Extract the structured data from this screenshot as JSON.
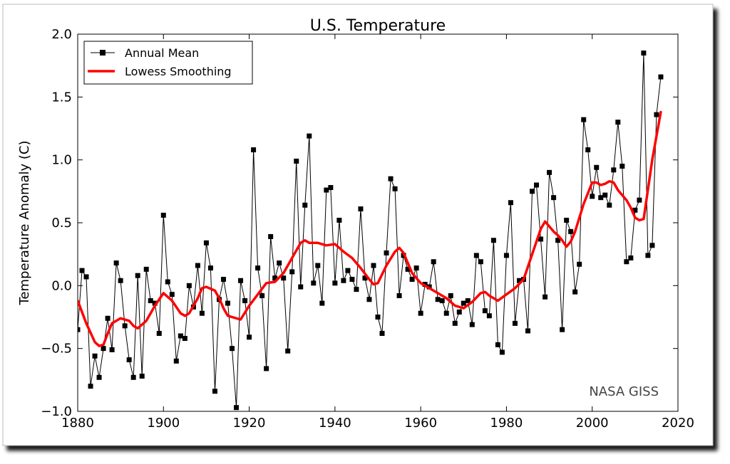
{
  "chart_data": {
    "type": "line",
    "title": "U.S. Temperature",
    "xlabel": "",
    "ylabel": "Temperature Anomaly (C)",
    "xlim": [
      1880,
      2020
    ],
    "ylim": [
      -1.0,
      2.0
    ],
    "x_ticks": [
      1880,
      1900,
      1920,
      1940,
      1960,
      1980,
      2000,
      2020
    ],
    "y_ticks": [
      -1.0,
      -0.5,
      0.0,
      0.5,
      1.0,
      1.5,
      2.0
    ],
    "x_tick_labels": [
      "1880",
      "1900",
      "1920",
      "1940",
      "1960",
      "1980",
      "2000",
      "2020"
    ],
    "y_tick_labels": [
      "−1.0",
      "−0.5",
      "0.0",
      "0.5",
      "1.0",
      "1.5",
      "2.0"
    ],
    "grid": false,
    "legend_position": "top-left",
    "annotation": "NASA GISS",
    "series": [
      {
        "name": "Annual Mean",
        "color": "#000000",
        "marker": "square",
        "x": [
          1880,
          1881,
          1882,
          1883,
          1884,
          1885,
          1886,
          1887,
          1888,
          1889,
          1890,
          1891,
          1892,
          1893,
          1894,
          1895,
          1896,
          1897,
          1898,
          1899,
          1900,
          1901,
          1902,
          1903,
          1904,
          1905,
          1906,
          1907,
          1908,
          1909,
          1910,
          1911,
          1912,
          1913,
          1914,
          1915,
          1916,
          1917,
          1918,
          1919,
          1920,
          1921,
          1922,
          1923,
          1924,
          1925,
          1926,
          1927,
          1928,
          1929,
          1930,
          1931,
          1932,
          1933,
          1934,
          1935,
          1936,
          1937,
          1938,
          1939,
          1940,
          1941,
          1942,
          1943,
          1944,
          1945,
          1946,
          1947,
          1948,
          1949,
          1950,
          1951,
          1952,
          1953,
          1954,
          1955,
          1956,
          1957,
          1958,
          1959,
          1960,
          1961,
          1962,
          1963,
          1964,
          1965,
          1966,
          1967,
          1968,
          1969,
          1970,
          1971,
          1972,
          1973,
          1974,
          1975,
          1976,
          1977,
          1978,
          1979,
          1980,
          1981,
          1982,
          1983,
          1984,
          1985,
          1986,
          1987,
          1988,
          1989,
          1990,
          1991,
          1992,
          1993,
          1994,
          1995,
          1996,
          1997,
          1998,
          1999,
          2000,
          2001,
          2002,
          2003,
          2004,
          2005,
          2006,
          2007,
          2008,
          2009,
          2010,
          2011,
          2012,
          2013,
          2014,
          2015,
          2016
        ],
        "y": [
          -0.35,
          0.12,
          0.07,
          -0.8,
          -0.56,
          -0.73,
          -0.5,
          -0.26,
          -0.51,
          0.18,
          0.04,
          -0.32,
          -0.59,
          -0.73,
          0.08,
          -0.72,
          0.13,
          -0.12,
          -0.14,
          -0.38,
          0.56,
          0.03,
          -0.07,
          -0.6,
          -0.4,
          -0.42,
          0.0,
          -0.17,
          0.16,
          -0.22,
          0.34,
          0.14,
          -0.84,
          -0.11,
          0.05,
          -0.14,
          -0.5,
          -0.97,
          0.04,
          -0.12,
          -0.41,
          1.08,
          0.14,
          -0.08,
          -0.66,
          0.39,
          0.06,
          0.18,
          0.06,
          -0.52,
          0.11,
          0.99,
          -0.01,
          0.64,
          1.19,
          0.02,
          0.16,
          -0.14,
          0.76,
          0.78,
          0.02,
          0.52,
          0.04,
          0.12,
          0.05,
          -0.03,
          0.61,
          0.06,
          -0.11,
          0.16,
          -0.25,
          -0.38,
          0.26,
          0.85,
          0.77,
          -0.08,
          0.24,
          0.13,
          0.05,
          0.14,
          -0.22,
          0.01,
          -0.01,
          0.19,
          -0.11,
          -0.12,
          -0.22,
          -0.08,
          -0.3,
          -0.21,
          -0.14,
          -0.12,
          -0.31,
          0.24,
          0.19,
          -0.2,
          -0.24,
          0.36,
          -0.47,
          -0.53,
          0.24,
          0.66,
          -0.3,
          0.04,
          0.05,
          -0.36,
          0.75,
          0.8,
          0.37,
          -0.09,
          0.9,
          0.7,
          0.36,
          -0.35,
          0.52,
          0.43,
          -0.05,
          0.17,
          1.32,
          1.08,
          0.71,
          0.94,
          0.7,
          0.72,
          0.64,
          0.92,
          1.3,
          0.95,
          0.19,
          0.22,
          0.6,
          0.68,
          1.85,
          0.24,
          0.32,
          1.36,
          1.66
        ]
      },
      {
        "name": "Lowess Smoothing",
        "color": "#ff0000",
        "marker": "none",
        "x": [
          1880,
          1882,
          1884,
          1885,
          1886,
          1887,
          1888,
          1890,
          1892,
          1893,
          1894,
          1896,
          1898,
          1900,
          1902,
          1904,
          1905,
          1906,
          1908,
          1909,
          1910,
          1912,
          1913,
          1914,
          1915,
          1916,
          1918,
          1920,
          1922,
          1924,
          1926,
          1928,
          1930,
          1932,
          1933,
          1934,
          1936,
          1938,
          1940,
          1942,
          1944,
          1946,
          1948,
          1949,
          1950,
          1952,
          1954,
          1955,
          1956,
          1958,
          1960,
          1962,
          1964,
          1966,
          1968,
          1970,
          1972,
          1974,
          1975,
          1976,
          1977,
          1978,
          1980,
          1982,
          1984,
          1986,
          1988,
          1989,
          1990,
          1991,
          1992,
          1993,
          1994,
          1995,
          1996,
          1998,
          2000,
          2001,
          2002,
          2003,
          2004,
          2005,
          2006,
          2008,
          2009,
          2010,
          2011,
          2012,
          2014,
          2016
        ],
        "y": [
          -0.12,
          -0.3,
          -0.45,
          -0.48,
          -0.47,
          -0.38,
          -0.3,
          -0.26,
          -0.28,
          -0.32,
          -0.34,
          -0.28,
          -0.16,
          -0.06,
          -0.12,
          -0.22,
          -0.24,
          -0.22,
          -0.1,
          -0.02,
          -0.01,
          -0.04,
          -0.1,
          -0.18,
          -0.24,
          -0.25,
          -0.27,
          -0.16,
          -0.07,
          0.02,
          0.03,
          0.1,
          0.22,
          0.34,
          0.36,
          0.34,
          0.34,
          0.32,
          0.33,
          0.27,
          0.22,
          0.14,
          0.05,
          0.01,
          0.02,
          0.16,
          0.27,
          0.3,
          0.26,
          0.1,
          0.02,
          -0.02,
          -0.06,
          -0.1,
          -0.16,
          -0.18,
          -0.13,
          -0.06,
          -0.05,
          -0.08,
          -0.1,
          -0.12,
          -0.07,
          -0.02,
          0.05,
          0.25,
          0.45,
          0.51,
          0.47,
          0.43,
          0.4,
          0.36,
          0.31,
          0.35,
          0.43,
          0.65,
          0.82,
          0.82,
          0.8,
          0.81,
          0.83,
          0.82,
          0.76,
          0.68,
          0.62,
          0.54,
          0.52,
          0.53,
          1.0,
          1.38
        ]
      }
    ]
  }
}
